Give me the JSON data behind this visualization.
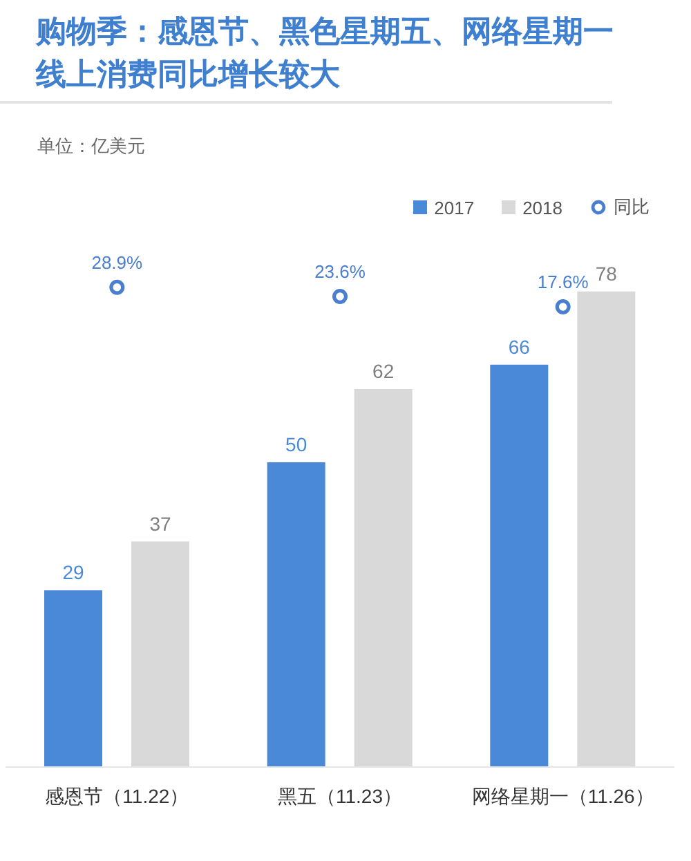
{
  "chart_data": {
    "type": "bar",
    "title": "购物季：感恩节、黑色星期五、网络星期一线上消费同比增长较大",
    "annotations": [
      "单位：亿美元"
    ],
    "categories": [
      "感恩节（11.22）",
      "黑五（11.23）",
      "网络星期一（11.26）"
    ],
    "series": [
      {
        "name": "2017",
        "color": "#4a89d8",
        "values": [
          29,
          50,
          66
        ]
      },
      {
        "name": "2018",
        "color": "#d9d9d9",
        "values": [
          37,
          62,
          78
        ]
      },
      {
        "name": "同比",
        "type": "scatter",
        "axis": "y2",
        "marker": "circle",
        "color": "#4a7fcf",
        "values": [
          28.9,
          23.6,
          17.6
        ],
        "value_labels": [
          "28.9%",
          "23.6%",
          "17.6%"
        ]
      }
    ],
    "data_labels": true,
    "legend": "top right",
    "tick_labels": "x"
  }
}
